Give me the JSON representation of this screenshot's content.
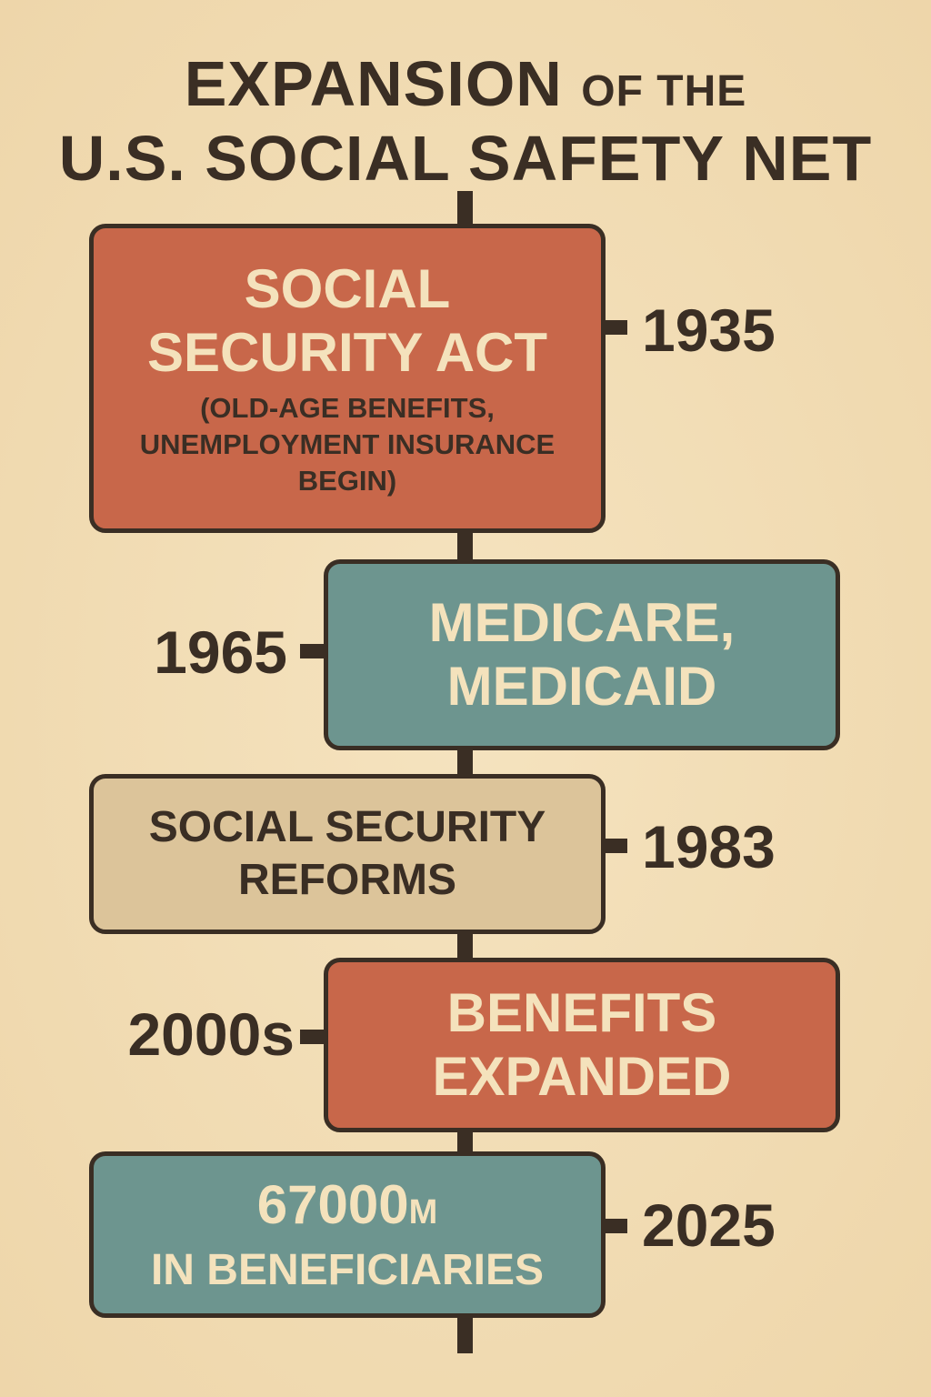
{
  "title": {
    "main": "EXPANSION",
    "small": "OF THE",
    "line2": "U.S. SOCIAL SAFETY NET"
  },
  "events": [
    {
      "lines": [
        "SOCIAL",
        "SECURITY ACT"
      ],
      "detail": [
        "(OLD-AGE BENEFITS,",
        "UNEMPLOYMENT INSURANCE",
        "BEGIN)"
      ],
      "year": "1935"
    },
    {
      "lines": [
        "MEDICARE,",
        "MEDICAID"
      ],
      "year": "1965"
    },
    {
      "lines": [
        "SOCIAL SECURITY",
        "REFORMS"
      ],
      "year": "1983"
    },
    {
      "lines": [
        "BENEFITS",
        "EXPANDED"
      ],
      "year": "2000s"
    },
    {
      "value": "67000",
      "unit": "M",
      "lines": [
        "IN BENEFICIARIES"
      ],
      "year": "2025"
    }
  ]
}
